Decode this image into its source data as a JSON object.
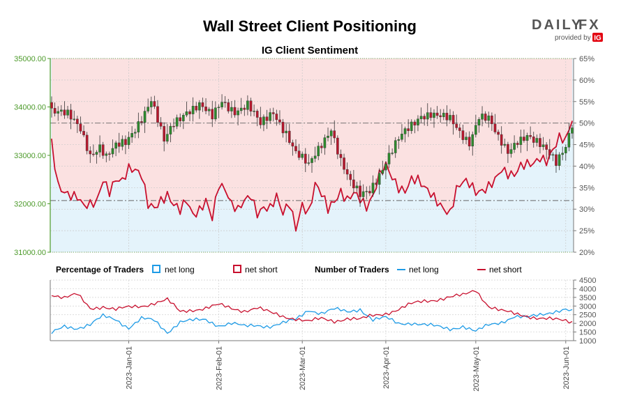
{
  "page": {
    "title": "Wall Street Client Positioning",
    "subtitle": "IG Client Sentiment",
    "brand": {
      "name_part1": "DAILY",
      "name_part2": "FX",
      "provided_by": "provided by",
      "provider": "IG"
    }
  },
  "colors": {
    "long": "#1e9be6",
    "short": "#c8102e",
    "long_fill": "#e4f3fb",
    "short_fill": "#fbe1e1",
    "candle_up": "#2e8b2e",
    "candle_down": "#b8182e",
    "left_axis": "#4c9a2a",
    "right_axis": "#555555",
    "brand_red": "#e30613"
  },
  "legend": {
    "percentage_label": "Percentage of Traders",
    "number_label": "Number of Traders",
    "net_long": "net long",
    "net_short": "net short"
  },
  "chart_data": [
    {
      "type": "candlestick",
      "title": "IG Client Sentiment",
      "left_axis": {
        "ticks": [
          31000,
          32000,
          33000,
          34000,
          35000
        ],
        "tick_labels": [
          "31000.00",
          "32000.00",
          "33000.00",
          "34000.00",
          "35000.00"
        ],
        "range": [
          31000,
          35000
        ]
      },
      "right_axis": {
        "ticks": [
          20,
          25,
          30,
          35,
          40,
          45,
          50,
          55,
          60,
          65
        ],
        "tick_labels": [
          "20%",
          "25%",
          "30%",
          "35%",
          "40%",
          "45%",
          "50%",
          "55%",
          "60%",
          "65%"
        ],
        "range": [
          20,
          65
        ]
      },
      "x_axis": {
        "tick_labels": [
          "2023-Jan-01",
          "2023-Feb-01",
          "2023-Mar-01",
          "2023-Apr-01",
          "2023-May-01",
          "2023-Jun-01"
        ],
        "tick_index": [
          24,
          52,
          78,
          104,
          132,
          160
        ],
        "count": 163
      },
      "reference_lines_pct": [
        50,
        32
      ],
      "ohlc_close_anchors": [
        [
          0,
          33950
        ],
        [
          5,
          33800
        ],
        [
          9,
          33550
        ],
        [
          12,
          33050
        ],
        [
          15,
          33200
        ],
        [
          17,
          32950
        ],
        [
          20,
          33150
        ],
        [
          23,
          33250
        ],
        [
          27,
          33700
        ],
        [
          31,
          34150
        ],
        [
          35,
          33250
        ],
        [
          38,
          33650
        ],
        [
          42,
          33950
        ],
        [
          46,
          34050
        ],
        [
          50,
          33750
        ],
        [
          53,
          34100
        ],
        [
          57,
          33950
        ],
        [
          61,
          34050
        ],
        [
          65,
          33600
        ],
        [
          69,
          33900
        ],
        [
          73,
          33500
        ],
        [
          76,
          33050
        ],
        [
          80,
          32750
        ],
        [
          84,
          33250
        ],
        [
          87,
          33600
        ],
        [
          90,
          32900
        ],
        [
          93,
          32400
        ],
        [
          96,
          32150
        ],
        [
          99,
          32300
        ],
        [
          102,
          32650
        ],
        [
          105,
          33000
        ],
        [
          108,
          33300
        ],
        [
          112,
          33600
        ],
        [
          115,
          33850
        ],
        [
          118,
          33900
        ],
        [
          121,
          33800
        ],
        [
          124,
          33700
        ],
        [
          127,
          33450
        ],
        [
          130,
          33300
        ],
        [
          133,
          33850
        ],
        [
          136,
          33750
        ],
        [
          139,
          33300
        ],
        [
          142,
          33050
        ],
        [
          145,
          33350
        ],
        [
          148,
          33450
        ],
        [
          151,
          33250
        ],
        [
          154,
          33050
        ],
        [
          157,
          32850
        ],
        [
          160,
          33250
        ],
        [
          162,
          33700
        ]
      ],
      "pct_long_anchors": [
        [
          0,
          45
        ],
        [
          2,
          36
        ],
        [
          4,
          35
        ],
        [
          6,
          34
        ],
        [
          8,
          33
        ],
        [
          10,
          30
        ],
        [
          12,
          30
        ],
        [
          14,
          31
        ],
        [
          16,
          37
        ],
        [
          18,
          35
        ],
        [
          20,
          38
        ],
        [
          22,
          37
        ],
        [
          24,
          39
        ],
        [
          26,
          38
        ],
        [
          28,
          37
        ],
        [
          30,
          31
        ],
        [
          32,
          31
        ],
        [
          34,
          33
        ],
        [
          36,
          34
        ],
        [
          38,
          31
        ],
        [
          40,
          29
        ],
        [
          42,
          31
        ],
        [
          44,
          28
        ],
        [
          46,
          30
        ],
        [
          48,
          33
        ],
        [
          50,
          29
        ],
        [
          52,
          36
        ],
        [
          54,
          34
        ],
        [
          56,
          30
        ],
        [
          58,
          29
        ],
        [
          60,
          32
        ],
        [
          62,
          34
        ],
        [
          64,
          30
        ],
        [
          66,
          31
        ],
        [
          68,
          30
        ],
        [
          70,
          32
        ],
        [
          72,
          28
        ],
        [
          74,
          31
        ],
        [
          76,
          26
        ],
        [
          78,
          32
        ],
        [
          80,
          30
        ],
        [
          82,
          36
        ],
        [
          84,
          33
        ],
        [
          86,
          29
        ],
        [
          88,
          31
        ],
        [
          90,
          34
        ],
        [
          92,
          33
        ],
        [
          94,
          35
        ],
        [
          96,
          33
        ],
        [
          98,
          30
        ],
        [
          100,
          32
        ],
        [
          102,
          37
        ],
        [
          104,
          40
        ],
        [
          106,
          38
        ],
        [
          108,
          36
        ],
        [
          110,
          35
        ],
        [
          112,
          37
        ],
        [
          114,
          36
        ],
        [
          116,
          34
        ],
        [
          118,
          33
        ],
        [
          120,
          32
        ],
        [
          122,
          31
        ],
        [
          124,
          30
        ],
        [
          126,
          35
        ],
        [
          128,
          36
        ],
        [
          130,
          35
        ],
        [
          132,
          33
        ],
        [
          134,
          34
        ],
        [
          136,
          36
        ],
        [
          138,
          38
        ],
        [
          140,
          40
        ],
        [
          142,
          38
        ],
        [
          144,
          37
        ],
        [
          146,
          39
        ],
        [
          148,
          40
        ],
        [
          150,
          41
        ],
        [
          152,
          43
        ],
        [
          154,
          42
        ],
        [
          156,
          44
        ],
        [
          158,
          46
        ],
        [
          160,
          45
        ],
        [
          162,
          50
        ]
      ],
      "series": [
        {
          "name": "net long",
          "unit": "%"
        },
        {
          "name": "net short",
          "unit": "%"
        }
      ]
    },
    {
      "type": "line",
      "title": "Number of Traders",
      "right_axis": {
        "ticks": [
          1000,
          1500,
          2000,
          2500,
          3000,
          3500,
          4000,
          4500
        ],
        "tick_labels": [
          "1000",
          "1500",
          "2000",
          "2500",
          "3000",
          "3500",
          "4000",
          "4500"
        ],
        "range": [
          1000,
          4500
        ]
      },
      "series": [
        {
          "name": "net long",
          "anchors": [
            [
              0,
              1400
            ],
            [
              4,
              1850
            ],
            [
              8,
              1750
            ],
            [
              12,
              1900
            ],
            [
              16,
              2400
            ],
            [
              20,
              2250
            ],
            [
              24,
              1750
            ],
            [
              28,
              2250
            ],
            [
              32,
              2150
            ],
            [
              36,
              1500
            ],
            [
              40,
              2100
            ],
            [
              44,
              2150
            ],
            [
              48,
              2200
            ],
            [
              52,
              1900
            ],
            [
              56,
              2000
            ],
            [
              60,
              1800
            ],
            [
              64,
              1900
            ],
            [
              68,
              1850
            ],
            [
              72,
              2000
            ],
            [
              76,
              2200
            ],
            [
              80,
              2800
            ],
            [
              84,
              2600
            ],
            [
              88,
              2800
            ],
            [
              92,
              2650
            ],
            [
              96,
              2850
            ],
            [
              100,
              2200
            ],
            [
              104,
              2300
            ],
            [
              108,
              2000
            ],
            [
              112,
              2050
            ],
            [
              116,
              1900
            ],
            [
              120,
              1800
            ],
            [
              124,
              1700
            ],
            [
              128,
              1850
            ],
            [
              132,
              1500
            ],
            [
              136,
              1900
            ],
            [
              140,
              2100
            ],
            [
              144,
              2400
            ],
            [
              148,
              2300
            ],
            [
              152,
              2500
            ],
            [
              156,
              2700
            ],
            [
              160,
              2800
            ],
            [
              162,
              2650
            ]
          ]
        },
        {
          "name": "net short",
          "anchors": [
            [
              0,
              3700
            ],
            [
              4,
              3500
            ],
            [
              8,
              3650
            ],
            [
              12,
              2850
            ],
            [
              16,
              3000
            ],
            [
              20,
              2800
            ],
            [
              24,
              2900
            ],
            [
              28,
              3000
            ],
            [
              32,
              3200
            ],
            [
              36,
              3350
            ],
            [
              40,
              2650
            ],
            [
              44,
              2800
            ],
            [
              48,
              2900
            ],
            [
              52,
              3050
            ],
            [
              56,
              2850
            ],
            [
              60,
              2750
            ],
            [
              64,
              2900
            ],
            [
              68,
              2600
            ],
            [
              72,
              2400
            ],
            [
              76,
              2300
            ],
            [
              80,
              2100
            ],
            [
              84,
              2250
            ],
            [
              88,
              2150
            ],
            [
              92,
              2300
            ],
            [
              96,
              2200
            ],
            [
              100,
              2450
            ],
            [
              104,
              2600
            ],
            [
              108,
              2800
            ],
            [
              112,
              3100
            ],
            [
              116,
              3300
            ],
            [
              120,
              3400
            ],
            [
              124,
              3500
            ],
            [
              128,
              3600
            ],
            [
              132,
              3950
            ],
            [
              136,
              3000
            ],
            [
              140,
              2700
            ],
            [
              144,
              2550
            ],
            [
              148,
              2450
            ],
            [
              152,
              2300
            ],
            [
              156,
              2200
            ],
            [
              160,
              2150
            ],
            [
              162,
              2100
            ]
          ]
        }
      ]
    }
  ]
}
